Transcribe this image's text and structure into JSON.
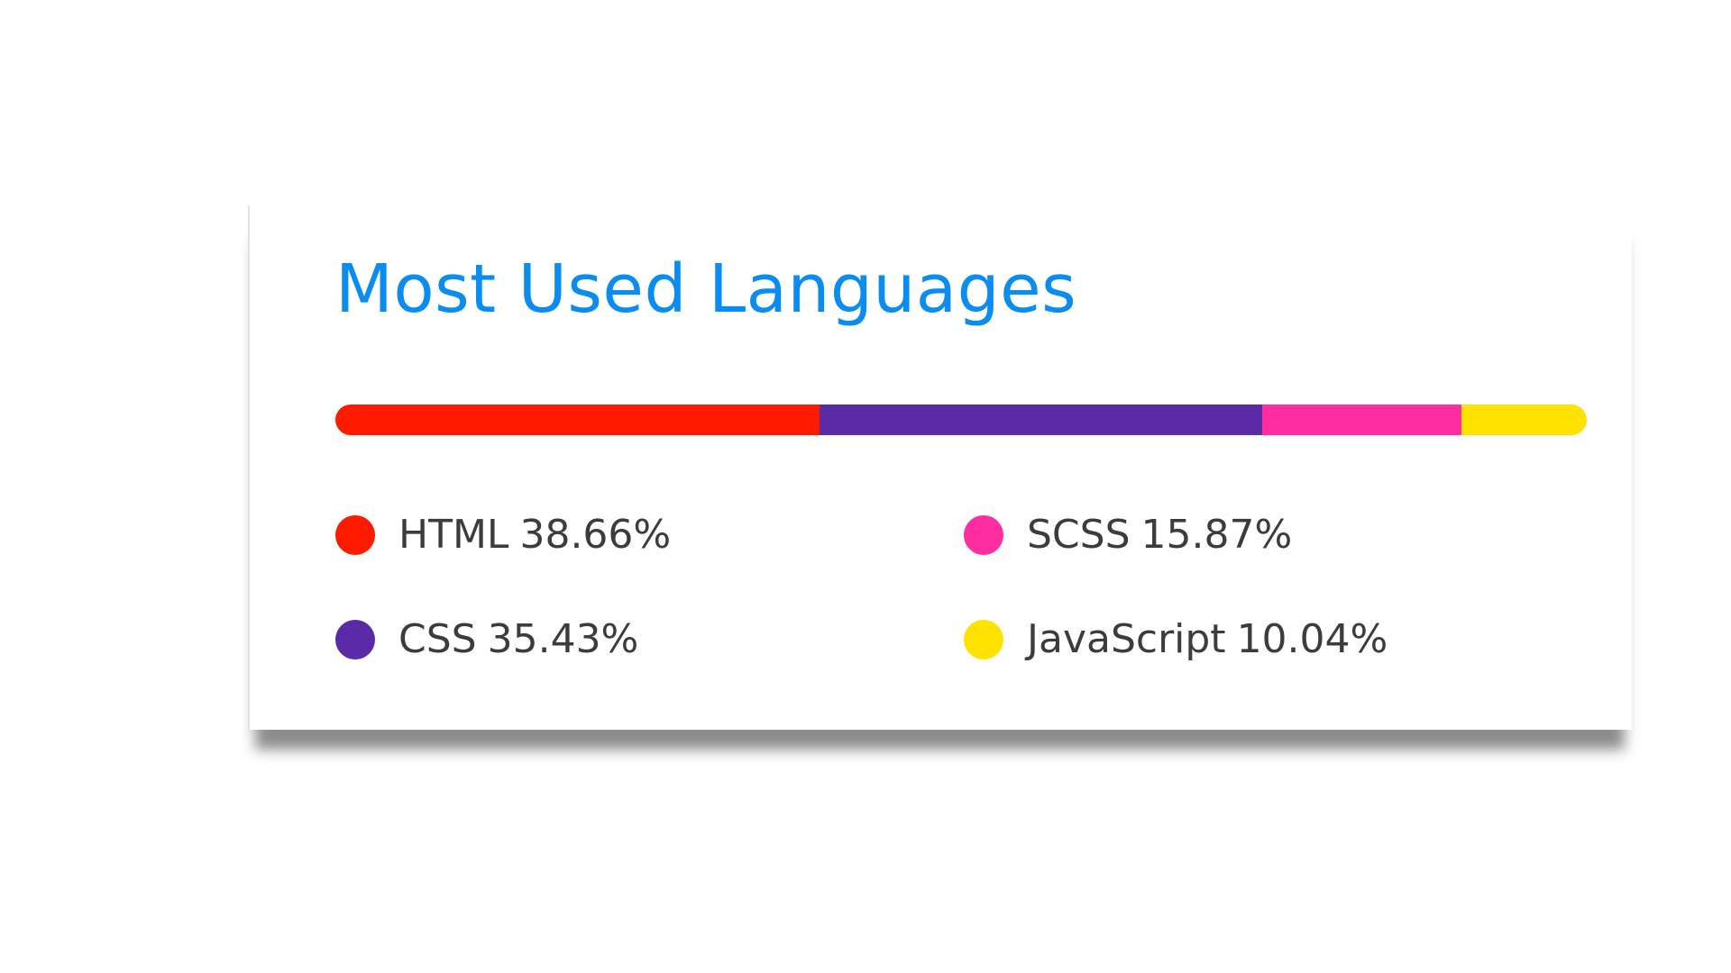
{
  "chart_data": {
    "type": "bar",
    "title": "Most Used Languages",
    "categories": [
      "HTML",
      "CSS",
      "SCSS",
      "JavaScript"
    ],
    "values": [
      38.66,
      35.43,
      15.87,
      10.04
    ],
    "value_labels": [
      "38.66%",
      "35.43%",
      "15.87%",
      "10.04%"
    ],
    "colors": [
      "#ff1a00",
      "#5b2aa6",
      "#ff2da0",
      "#ffe200"
    ],
    "orientation": "horizontal-stacked",
    "legend_position": "bottom",
    "grid": false
  }
}
